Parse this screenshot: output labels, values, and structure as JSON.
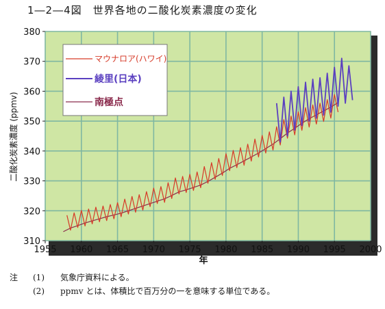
{
  "title": "1―2―4図　世界各地の二酸化炭素濃度の変化",
  "notes": {
    "head": "注",
    "items": [
      {
        "num": "(1)",
        "text": "気象庁資料による。"
      },
      {
        "num": "(2)",
        "text": "ppmv とは、体積比で百万分の一を意味する単位である。"
      }
    ]
  },
  "colors": {
    "background": "#cfe6a4",
    "grid": "#7fb7a2",
    "mauna_loa": "#d63a28",
    "ryori": "#5a3fc0",
    "south_pole": "#8a2a4c"
  },
  "chart_data": {
    "type": "line",
    "xlabel": "年",
    "ylabel": "二酸化炭素濃度 (ppmv)",
    "xlim": [
      1955,
      2000
    ],
    "ylim": [
      310,
      380
    ],
    "xticks": [
      "1955",
      "1960",
      "1965",
      "1970",
      "1975",
      "1980",
      "1985",
      "1990",
      "1995",
      "2000"
    ],
    "yticks": [
      "310",
      "320",
      "330",
      "340",
      "350",
      "360",
      "370",
      "380"
    ],
    "grid": true,
    "legend_position": "top-left",
    "series": [
      {
        "name": "マウナロア(ハワイ)",
        "color": "#d63a28",
        "x": [
          1958.0,
          1958.5,
          1959.0,
          1959.5,
          1960.0,
          1960.5,
          1961.0,
          1961.5,
          1962.0,
          1962.5,
          1963.0,
          1963.5,
          1964.0,
          1964.5,
          1965.0,
          1965.5,
          1966.0,
          1966.5,
          1967.0,
          1967.5,
          1968.0,
          1968.5,
          1969.0,
          1969.5,
          1970.0,
          1970.5,
          1971.0,
          1971.5,
          1972.0,
          1972.5,
          1973.0,
          1973.5,
          1974.0,
          1974.5,
          1975.0,
          1975.5,
          1976.0,
          1976.5,
          1977.0,
          1977.5,
          1978.0,
          1978.5,
          1979.0,
          1979.5,
          1980.0,
          1980.5,
          1981.0,
          1981.5,
          1982.0,
          1982.5,
          1983.0,
          1983.5,
          1984.0,
          1984.5,
          1985.0,
          1985.5,
          1986.0,
          1986.5,
          1987.0,
          1987.5,
          1988.0,
          1988.5,
          1989.0,
          1989.5,
          1990.0,
          1990.5,
          1991.0,
          1991.5,
          1992.0,
          1992.5,
          1993.0,
          1993.5,
          1994.0,
          1994.5,
          1995.0,
          1995.5
        ],
        "y": [
          318.5,
          313.5,
          319.3,
          314.4,
          320.1,
          314.9,
          320.6,
          315.6,
          321.2,
          316.3,
          321.6,
          316.7,
          322.1,
          317.3,
          322.7,
          318.0,
          323.9,
          318.9,
          324.8,
          319.5,
          325.4,
          320.2,
          326.4,
          321.4,
          327.6,
          322.4,
          328.1,
          322.8,
          329.4,
          324.1,
          331.0,
          325.6,
          331.5,
          326.1,
          332.2,
          326.8,
          333.0,
          327.7,
          334.8,
          329.2,
          336.1,
          330.5,
          337.5,
          331.8,
          339.1,
          333.4,
          340.2,
          334.4,
          341.1,
          335.2,
          342.3,
          336.6,
          344.0,
          338.0,
          345.2,
          339.3,
          346.4,
          340.3,
          348.1,
          342.0,
          350.5,
          344.3,
          351.7,
          345.4,
          353.1,
          346.9,
          354.5,
          348.0,
          355.4,
          349.0,
          356.0,
          349.9,
          357.2,
          351.0,
          358.9,
          353.0
        ]
      },
      {
        "name": "綾里(日本)",
        "color": "#5a3fc0",
        "x": [
          1987.0,
          1987.5,
          1988.0,
          1988.5,
          1989.0,
          1989.5,
          1990.0,
          1990.5,
          1991.0,
          1991.5,
          1992.0,
          1992.5,
          1993.0,
          1993.5,
          1994.0,
          1994.5,
          1995.0,
          1995.5,
          1996.0,
          1996.5,
          1997.0,
          1997.5
        ],
        "y": [
          356.0,
          343.0,
          358.0,
          345.0,
          360.0,
          347.0,
          361.5,
          348.5,
          363.0,
          350.0,
          364.0,
          351.0,
          364.5,
          352.0,
          366.0,
          353.0,
          368.0,
          355.0,
          371.0,
          356.0,
          368.5,
          357.0
        ]
      },
      {
        "name": "南極点",
        "color": "#8a2a4c",
        "x": [
          1957.5,
          1958.5,
          1959.5,
          1960.5,
          1961.5,
          1962.5,
          1963.5,
          1964.5,
          1965.5,
          1966.5,
          1967.5,
          1968.5,
          1969.5,
          1970.5,
          1971.5,
          1972.5,
          1973.5,
          1974.5,
          1975.5,
          1976.5,
          1977.5,
          1978.5,
          1979.5,
          1980.5,
          1981.5,
          1982.5,
          1983.5,
          1984.5,
          1985.5,
          1986.5,
          1987.5,
          1988.5,
          1989.5,
          1990.5,
          1991.5,
          1992.5,
          1993.5,
          1994.5,
          1995.5
        ],
        "y": [
          313.0,
          314.2,
          315.0,
          315.9,
          316.6,
          317.3,
          318.0,
          318.6,
          319.2,
          320.0,
          320.8,
          321.6,
          322.4,
          323.2,
          324.0,
          325.1,
          326.3,
          327.0,
          327.8,
          328.6,
          329.8,
          331.2,
          332.6,
          334.2,
          335.4,
          336.7,
          338.0,
          339.3,
          340.8,
          342.3,
          344.1,
          346.0,
          347.6,
          349.3,
          350.8,
          352.1,
          353.4,
          354.7,
          356.2
        ]
      }
    ]
  }
}
